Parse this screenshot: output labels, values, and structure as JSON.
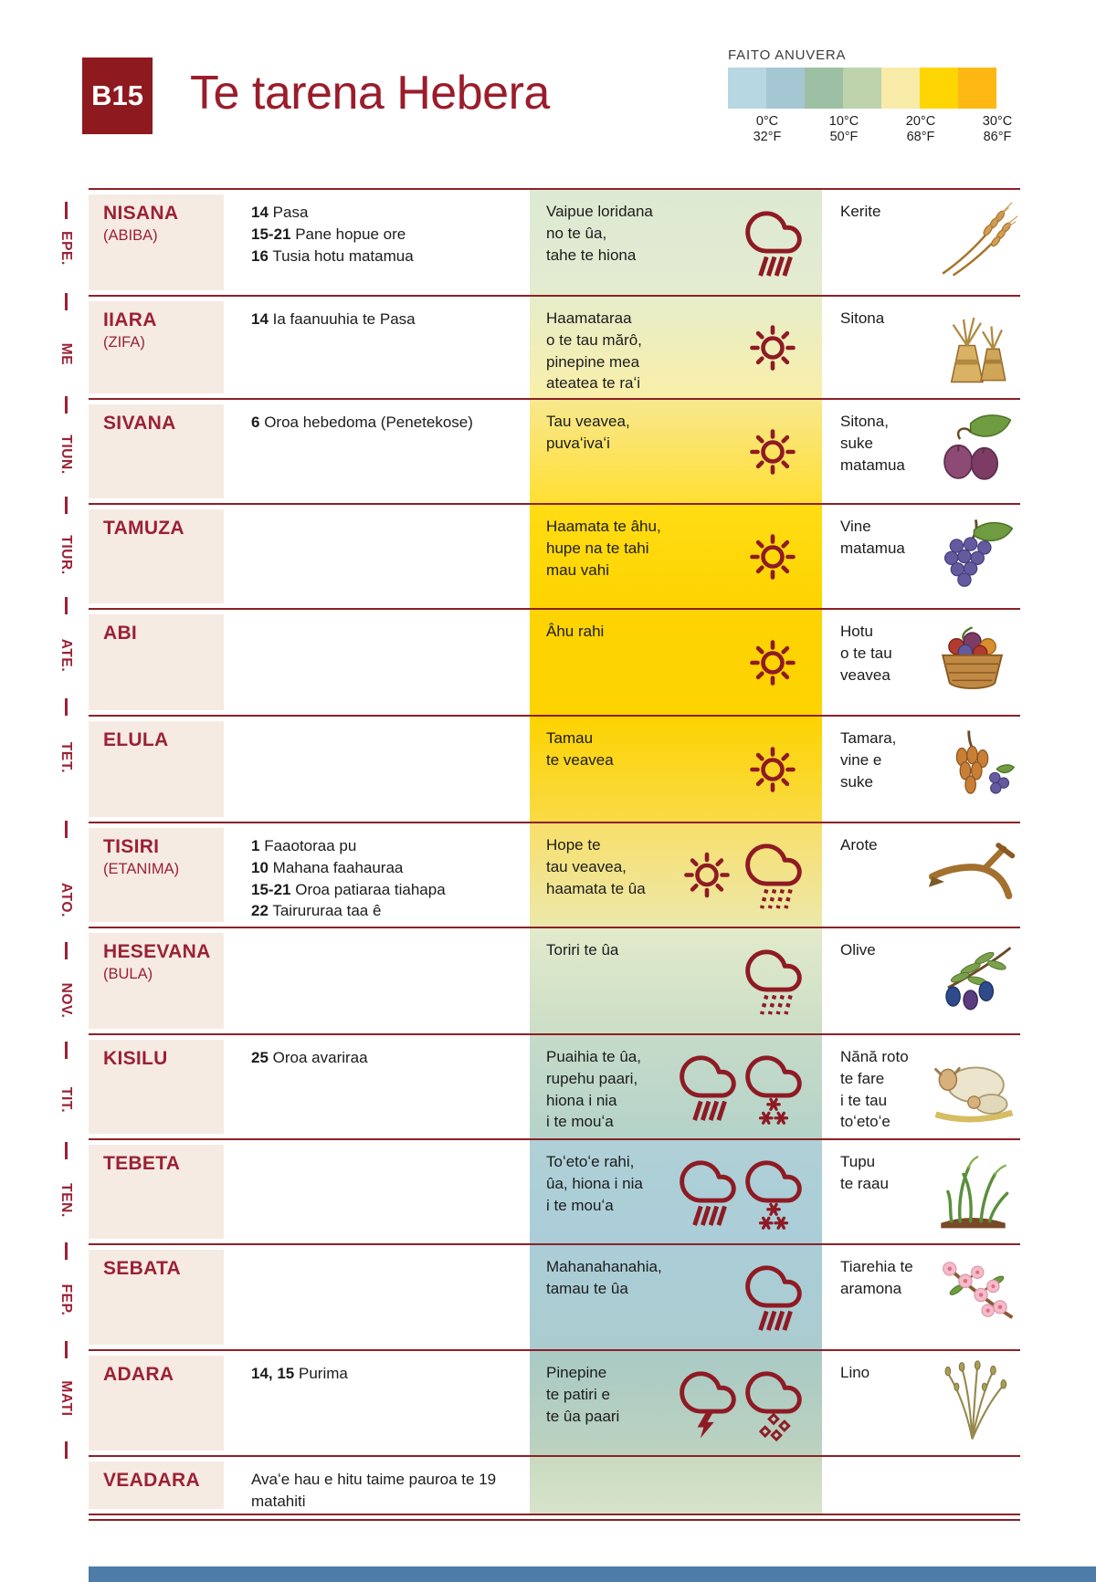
{
  "colors": {
    "accent": "#8e1b24",
    "line": "#8c2127",
    "month_bg": "#f5ebe3",
    "footer": "#4c7ca7"
  },
  "header": {
    "badge": "B15",
    "title": "Te tarena Hebera",
    "legend": {
      "title": "FAITO ANUVERA",
      "swatches": [
        "#b7d7e3",
        "#a4c7d3",
        "#9dbfa3",
        "#bed3ab",
        "#f8eba8",
        "#ffd503",
        "#fdb813"
      ],
      "ticks": [
        {
          "c": "0°C",
          "f": "32°F"
        },
        {
          "c": "10°C",
          "f": "50°F"
        },
        {
          "c": "20°C",
          "f": "68°F"
        },
        {
          "c": "30°C",
          "f": "86°F"
        }
      ]
    }
  },
  "gregorian_months": [
    "EPE.",
    "ME",
    "TIUN.",
    "TIUR.",
    "ATE.",
    "TET.",
    "ATO.",
    "NOV.",
    "TIT.",
    "TEN.",
    "FEP.",
    "MATI"
  ],
  "rows": [
    {
      "month": "NISANA",
      "alt": "(ABIBA)",
      "events": [
        {
          "d": "14",
          "t": "Pasa"
        },
        {
          "d": "15-21",
          "t": "Pane hopue ore"
        },
        {
          "d": "16",
          "t": "Tusia hotu matamua"
        }
      ],
      "weather": "Vaipue loridana\nno te ûa,\ntahe te hiona",
      "icons": [
        "rain"
      ],
      "crop": "Kerite",
      "crop_icon": "barley",
      "bg": [
        "#dde9d3",
        "#e4ecd0"
      ]
    },
    {
      "month": "IIARA",
      "alt": "(ZIFA)",
      "events": [
        {
          "d": "14",
          "t": "Ia faanuuhia te Pasa"
        }
      ],
      "weather": "Haamataraa\no te tau mărô,\npinepine mea\nateatea te raʻi",
      "icons": [
        "sun"
      ],
      "crop": "Sitona",
      "crop_icon": "sheaf",
      "bg": [
        "#e6edca",
        "#f9efa9"
      ]
    },
    {
      "month": "SIVANA",
      "alt": "",
      "events": [
        {
          "d": "6",
          "t": "Oroa hebedoma (Penetekose)"
        }
      ],
      "weather": "Tau veavea,\npuvaʻivaʻi",
      "icons": [
        "sun"
      ],
      "crop": "Sitona,\nsuke\nmatamua",
      "crop_icon": "figs",
      "bg": [
        "#f8e88f",
        "#ffdf33"
      ]
    },
    {
      "month": "TAMUZA",
      "alt": "",
      "events": [],
      "weather": "Haamata te âhu,\nhupe na te tahi\nmau vahi",
      "icons": [
        "sun"
      ],
      "crop": "Vine\nmatamua",
      "crop_icon": "grapes",
      "bg": [
        "#ffdc14",
        "#fed400"
      ]
    },
    {
      "month": "ABI",
      "alt": "",
      "events": [],
      "weather": "Âhu rahi",
      "icons": [
        "sun"
      ],
      "crop": "Hotu\no te tau\nveavea",
      "crop_icon": "basket",
      "bg": [
        "#fdd301",
        "#fdd301"
      ]
    },
    {
      "month": "ELULA",
      "alt": "",
      "events": [],
      "weather": "Tamau\nte veavea",
      "icons": [
        "sun"
      ],
      "crop": "Tamara,\nvine e\nsuke",
      "crop_icon": "dates",
      "bg": [
        "#fdd301",
        "#f9da45"
      ]
    },
    {
      "month": "TISIRI",
      "alt": "(ETANIMA)",
      "events": [
        {
          "d": "1",
          "t": "Faaotoraa pu"
        },
        {
          "d": "10",
          "t": "Mahana faahauraa"
        },
        {
          "d": "15-21",
          "t": "Oroa patiaraa tiahapa"
        },
        {
          "d": "22",
          "t": "Tairururaa taa ê"
        }
      ],
      "weather": "Hope te\ntau veavea,\nhaamata te ûa",
      "icons": [
        "sun",
        "rain-dots"
      ],
      "crop": "Arote",
      "crop_icon": "plow",
      "bg": [
        "#f8df6b",
        "#ece8ab"
      ]
    },
    {
      "month": "HESEVANA",
      "alt": "(BULA)",
      "events": [],
      "weather": "Toriri te ûa",
      "icons": [
        "rain-dots"
      ],
      "crop": "Olive",
      "crop_icon": "olive",
      "bg": [
        "#e2eacb",
        "#cbdec6"
      ]
    },
    {
      "month": "KISILU",
      "alt": "",
      "events": [
        {
          "d": "25",
          "t": "Oroa avariraa"
        }
      ],
      "weather": "Puaihia te ûa,\nrupehu paari,\nhiona i nia\ni te mouʻa",
      "icons": [
        "rain",
        "snow"
      ],
      "crop": "Nănă roto\nte fare\ni te tau\ntoʻetoʻe",
      "crop_icon": "sheep",
      "bg": [
        "#c6dbc9",
        "#b5d3c9"
      ]
    },
    {
      "month": "TEBETA",
      "alt": "",
      "events": [],
      "weather": "Toʻetoʻe rahi,\nûa, hiona i nia\ni te mouʻa",
      "icons": [
        "rain",
        "snow"
      ],
      "crop": "Tupu\nte raau",
      "crop_icon": "sprout",
      "bg": [
        "#afd0d6",
        "#aacdd8"
      ]
    },
    {
      "month": "SEBATA",
      "alt": "",
      "events": [],
      "weather": "Mahanahanahia,\ntamau te ûa",
      "icons": [
        "rain"
      ],
      "crop": "Tiarehia te\naramona",
      "crop_icon": "almond",
      "bg": [
        "#aacdd8",
        "#abccce"
      ]
    },
    {
      "month": "ADARA",
      "alt": "",
      "events": [
        {
          "d": "14, 15",
          "t": "Purima"
        }
      ],
      "weather": "Pinepine\nte patiri e\nte ûa paari",
      "icons": [
        "storm",
        "hail"
      ],
      "crop": "Lino",
      "crop_icon": "flax",
      "bg": [
        "#a9cac5",
        "#bcd2c0"
      ]
    },
    {
      "month": "VEADARA",
      "alt": "",
      "events": [
        {
          "d": "",
          "t": "Avaʻe hau e hitu taime pauroa te 19 matahiti"
        }
      ],
      "weather": "",
      "icons": [],
      "crop": "",
      "crop_icon": null,
      "bg": [
        "#c8dac0",
        "#d8e3cb"
      ]
    }
  ],
  "footer_color": "#4c7ca7"
}
